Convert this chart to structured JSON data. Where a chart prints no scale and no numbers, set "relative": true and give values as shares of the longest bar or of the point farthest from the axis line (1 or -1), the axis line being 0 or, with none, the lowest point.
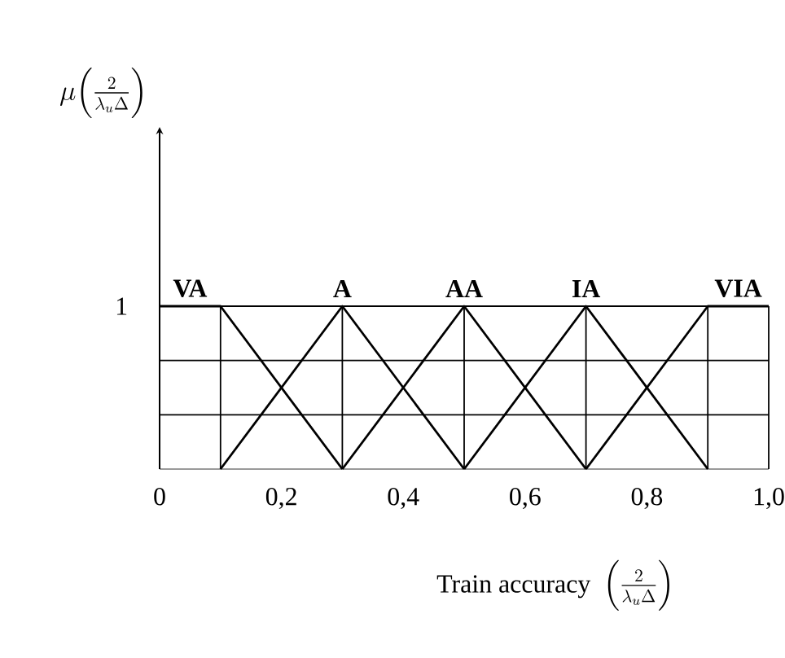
{
  "chart_data": {
    "type": "line",
    "xlabel": "\\text{Train accuracy}\\;\\left(\\frac{2}{\\lambda_u\\Delta}\\right)",
    "xlim": [
      0,
      1.0
    ],
    "relative": true,
    "annotations": [
      "1",
      "\\mu\\!\\left(\\frac{2}{\\lambda_u\\Delta}\\right)"
    ],
    "xticks": [
      0,
      {
        "value": 0.2,
        "label": "0,2"
      },
      {
        "value": 0.4,
        "label": "0,4"
      },
      {
        "value": 0.6,
        "label": "0,6"
      },
      {
        "value": 0.8,
        "label": "0,8"
      },
      {
        "value": 1.0,
        "label": "1,0"
      }
    ],
    "grid": true,
    "marker": "none",
    "line_style": "solid",
    "series": [
      {
        "name": "VA",
        "color": "#000000",
        "x": [
          0,
          0.1,
          0.3
        ],
        "values": [
          1,
          1,
          0
        ]
      },
      {
        "name": "A",
        "color": "#000000",
        "x": [
          0.1,
          0.3,
          0.5
        ],
        "values": [
          0,
          1,
          0
        ]
      },
      {
        "name": "AA",
        "color": "#000000",
        "x": [
          0.3,
          0.5,
          0.7
        ],
        "values": [
          0,
          1,
          0
        ]
      },
      {
        "name": "IA",
        "color": "#000000",
        "x": [
          0.5,
          0.7,
          0.9
        ],
        "values": [
          0,
          1,
          0
        ]
      },
      {
        "name": "VIA",
        "color": "#000000",
        "x": [
          0.7,
          0.9,
          1.0
        ],
        "values": [
          0,
          1,
          1
        ]
      }
    ]
  }
}
